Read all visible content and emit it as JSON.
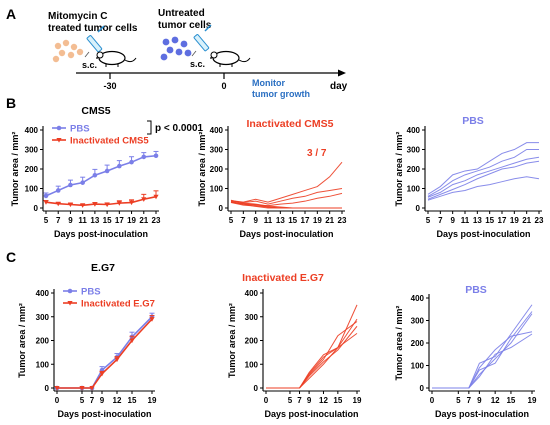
{
  "panel_a": {
    "letter": "A",
    "step1_line1": "Mitomycin C",
    "step1_line2": "treated tumor cells",
    "step2_line1": "Untreated",
    "step2_line2": "tumor cells",
    "route1": "s.c.",
    "route2": "s.c.",
    "tick1": "-30",
    "tick2": "0",
    "monitor_line1": "Monitor",
    "monitor_line2": "tumor growth",
    "axis_end": "day"
  },
  "panel_b": {
    "letter": "B"
  },
  "panel_c": {
    "letter": "C"
  },
  "chart_data": [
    {
      "id": "b1",
      "type": "line",
      "title": "CMS5",
      "title_color": "#000000",
      "xlabel": "Days post-inoculation",
      "ylabel": "Tumor area / mm²",
      "x": [
        5,
        7,
        9,
        11,
        13,
        15,
        17,
        19,
        21,
        23
      ],
      "xticks": [
        "5",
        "7",
        "9",
        "11",
        "13",
        "15",
        "17",
        "19",
        "21",
        "23"
      ],
      "ylim": [
        0,
        400
      ],
      "yticks": [
        "0",
        "100",
        "200",
        "300",
        "400"
      ],
      "legend": "top-left",
      "annotation": "p < 0.0001",
      "series": [
        {
          "name": "PBS",
          "color": "#7b7fe8",
          "marker": "circle",
          "values": [
            62,
            90,
            118,
            130,
            168,
            190,
            215,
            235,
            262,
            268
          ],
          "errors": [
            15,
            22,
            25,
            28,
            30,
            30,
            28,
            28,
            22,
            22
          ]
        },
        {
          "name": "Inactivated CMS5",
          "color": "#ec3e24",
          "marker": "triangle",
          "values": [
            30,
            22,
            18,
            14,
            20,
            18,
            25,
            28,
            45,
            58
          ],
          "errors": [
            8,
            6,
            6,
            5,
            8,
            8,
            12,
            14,
            25,
            30
          ]
        }
      ]
    },
    {
      "id": "b2",
      "type": "line",
      "title": "Inactivated CMS5",
      "title_color": "#ec3e24",
      "xlabel": "Days post-inoculation",
      "ylabel": "Tumor area / mm²",
      "x": [
        5,
        7,
        9,
        11,
        13,
        15,
        17,
        19,
        21,
        23
      ],
      "xticks": [
        "5",
        "7",
        "9",
        "11",
        "13",
        "15",
        "17",
        "19",
        "21",
        "23"
      ],
      "ylim": [
        0,
        400
      ],
      "yticks": [
        "0",
        "100",
        "200",
        "300",
        "400"
      ],
      "annotation": "3 / 7",
      "color": "#ec3e24",
      "individual": [
        [
          38,
          30,
          45,
          30,
          50,
          70,
          90,
          110,
          160,
          235
        ],
        [
          35,
          28,
          35,
          20,
          35,
          50,
          60,
          80,
          90,
          100
        ],
        [
          30,
          20,
          15,
          12,
          20,
          25,
          35,
          50,
          60,
          75
        ],
        [
          40,
          25,
          20,
          10,
          5,
          0,
          0,
          0,
          0,
          0
        ],
        [
          32,
          22,
          18,
          5,
          0,
          0,
          0,
          0,
          0,
          0
        ],
        [
          28,
          15,
          10,
          5,
          0,
          0,
          0,
          0,
          0,
          0
        ],
        [
          30,
          20,
          8,
          0,
          0,
          0,
          0,
          0,
          0,
          0
        ]
      ]
    },
    {
      "id": "b3",
      "type": "line",
      "title": "PBS",
      "title_color": "#7b7fe8",
      "xlabel": "Days post-inoculation",
      "ylabel": "Tumor area / mm²",
      "x": [
        5,
        7,
        9,
        11,
        13,
        15,
        17,
        19,
        21,
        23
      ],
      "xticks": [
        "5",
        "7",
        "9",
        "11",
        "13",
        "15",
        "17",
        "19",
        "21",
        "23"
      ],
      "ylim": [
        0,
        400
      ],
      "yticks": [
        "0",
        "100",
        "200",
        "300",
        "400"
      ],
      "color": "#7b7fe8",
      "individual": [
        [
          70,
          110,
          170,
          190,
          200,
          240,
          280,
          300,
          335,
          335
        ],
        [
          60,
          95,
          140,
          170,
          190,
          210,
          240,
          260,
          300,
          300
        ],
        [
          55,
          80,
          120,
          140,
          170,
          190,
          210,
          230,
          250,
          260
        ],
        [
          45,
          70,
          95,
          120,
          150,
          175,
          200,
          210,
          230,
          240
        ],
        [
          40,
          60,
          80,
          90,
          110,
          120,
          135,
          150,
          160,
          150
        ]
      ]
    },
    {
      "id": "c1",
      "type": "line",
      "title": "E.G7",
      "title_color": "#000000",
      "xlabel": "Days post-inoculation",
      "ylabel": "Tumor area / mm²",
      "x": [
        0,
        5,
        7,
        9,
        12,
        15,
        19
      ],
      "xticks": [
        "0",
        "5",
        "7",
        "9",
        "12",
        "15",
        "19"
      ],
      "ylim": [
        0,
        400
      ],
      "yticks": [
        "0",
        "100",
        "200",
        "300",
        "400"
      ],
      "legend": "top-left",
      "series": [
        {
          "name": "PBS",
          "color": "#7b7fe8",
          "marker": "circle",
          "values": [
            0,
            0,
            0,
            75,
            130,
            215,
            300
          ],
          "errors": [
            0,
            0,
            0,
            15,
            15,
            20,
            15
          ]
        },
        {
          "name": "Inactivated E.G7",
          "color": "#ec3e24",
          "marker": "triangle",
          "values": [
            0,
            0,
            0,
            60,
            120,
            200,
            290
          ],
          "errors": [
            0,
            0,
            0,
            10,
            12,
            18,
            15
          ]
        }
      ]
    },
    {
      "id": "c2",
      "type": "line",
      "title": "Inactivated E.G7",
      "title_color": "#ec3e24",
      "xlabel": "Days post-inoculation",
      "ylabel": "Tumor area / mm²",
      "x": [
        0,
        5,
        7,
        9,
        12,
        15,
        19
      ],
      "xticks": [
        "0",
        "5",
        "7",
        "9",
        "12",
        "15",
        "19"
      ],
      "ylim": [
        0,
        400
      ],
      "yticks": [
        "0",
        "100",
        "200",
        "300",
        "400"
      ],
      "color": "#ec3e24",
      "individual": [
        [
          0,
          0,
          0,
          60,
          130,
          170,
          350
        ],
        [
          0,
          0,
          0,
          65,
          140,
          170,
          290
        ],
        [
          0,
          0,
          0,
          50,
          110,
          160,
          260
        ],
        [
          0,
          0,
          0,
          55,
          120,
          220,
          280
        ],
        [
          0,
          0,
          0,
          40,
          100,
          170,
          230
        ]
      ]
    },
    {
      "id": "c3",
      "type": "line",
      "title": "PBS",
      "title_color": "#7b7fe8",
      "xlabel": "Days post-inoculation",
      "ylabel": "Tumor area / mm²",
      "x": [
        0,
        5,
        7,
        9,
        12,
        15,
        19
      ],
      "xticks": [
        "0",
        "5",
        "7",
        "9",
        "12",
        "15",
        "19"
      ],
      "ylim": [
        0,
        400
      ],
      "yticks": [
        "0",
        "100",
        "200",
        "300",
        "400"
      ],
      "color": "#7b7fe8",
      "individual": [
        [
          0,
          0,
          0,
          110,
          140,
          240,
          370
        ],
        [
          0,
          0,
          0,
          80,
          110,
          220,
          340
        ],
        [
          0,
          0,
          0,
          60,
          130,
          200,
          330
        ],
        [
          0,
          0,
          0,
          90,
          170,
          230,
          250
        ],
        [
          0,
          0,
          0,
          50,
          150,
          180,
          240
        ]
      ]
    }
  ]
}
